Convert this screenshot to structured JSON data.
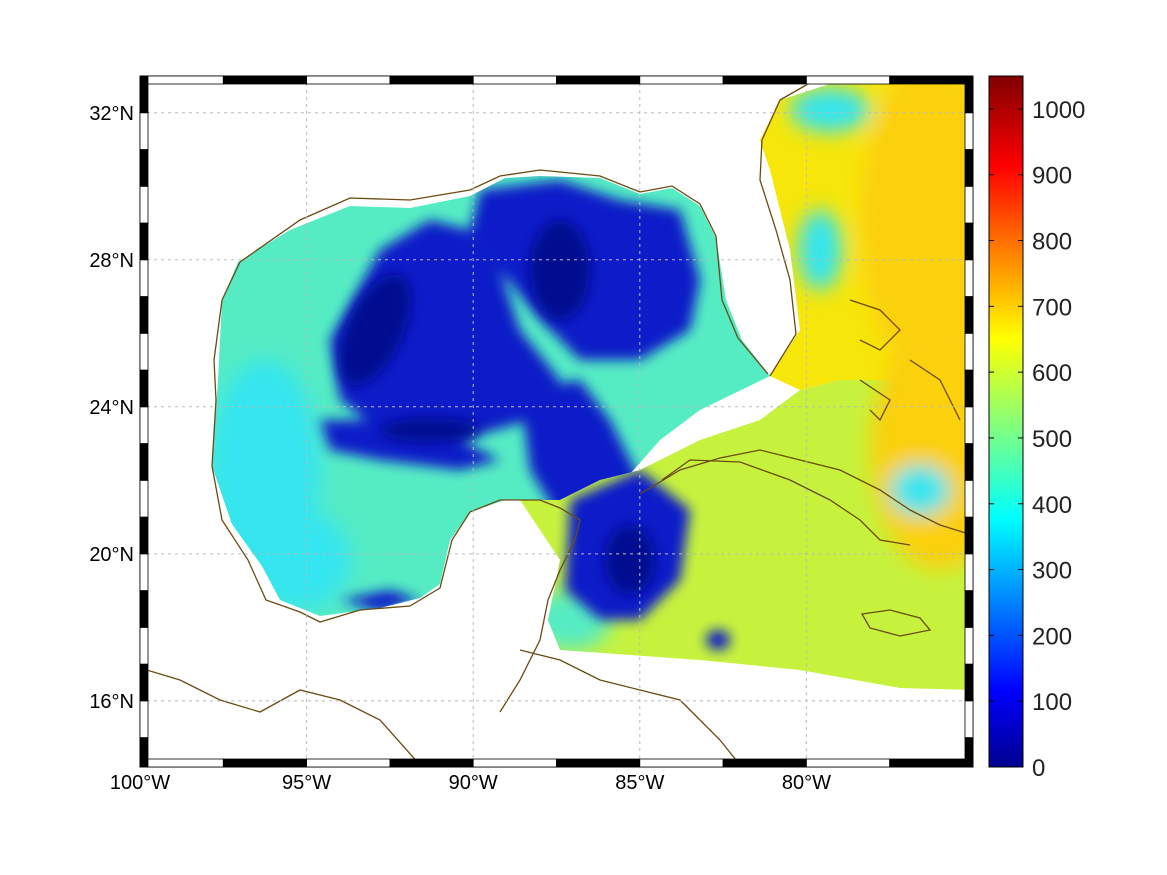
{
  "map": {
    "title": "",
    "lon_range": [
      -100,
      -75
    ],
    "lat_range": [
      14.2,
      33
    ],
    "colormap": "jet",
    "ocean_field_note": "",
    "land_outline_color": "#6b4a12",
    "grid": true,
    "longitude_ticks": [
      {
        "value": -100,
        "label": "100°W"
      },
      {
        "value": -95,
        "label": "95°W"
      },
      {
        "value": -90,
        "label": "90°W"
      },
      {
        "value": -85,
        "label": "85°W"
      },
      {
        "value": -80,
        "label": "80°W"
      }
    ],
    "latitude_ticks": [
      {
        "value": 32,
        "label": "32°N"
      },
      {
        "value": 28,
        "label": "28°N"
      },
      {
        "value": 24,
        "label": "24°N"
      },
      {
        "value": 20,
        "label": "20°N"
      },
      {
        "value": 16,
        "label": "16°N"
      }
    ]
  },
  "colorbar": {
    "min": 0,
    "max": 1050,
    "ticks": [
      {
        "value": 0,
        "label": "0"
      },
      {
        "value": 100,
        "label": "100"
      },
      {
        "value": 200,
        "label": "200"
      },
      {
        "value": 300,
        "label": "300"
      },
      {
        "value": 400,
        "label": "400"
      },
      {
        "value": 500,
        "label": "500"
      },
      {
        "value": 600,
        "label": "600"
      },
      {
        "value": 700,
        "label": "700"
      },
      {
        "value": 800,
        "label": "800"
      },
      {
        "value": 900,
        "label": "900"
      },
      {
        "value": 1000,
        "label": "1000"
      }
    ]
  },
  "colors": {
    "gulf_mid": "#55ecc4",
    "gulf_light": "#35e5ef",
    "deep_blue": "#0a1ec8",
    "navy": "#001090",
    "caribbean": "#c6f23e",
    "atlantic": "#f6e60a",
    "atlantic_orange": "#fbd00a"
  }
}
